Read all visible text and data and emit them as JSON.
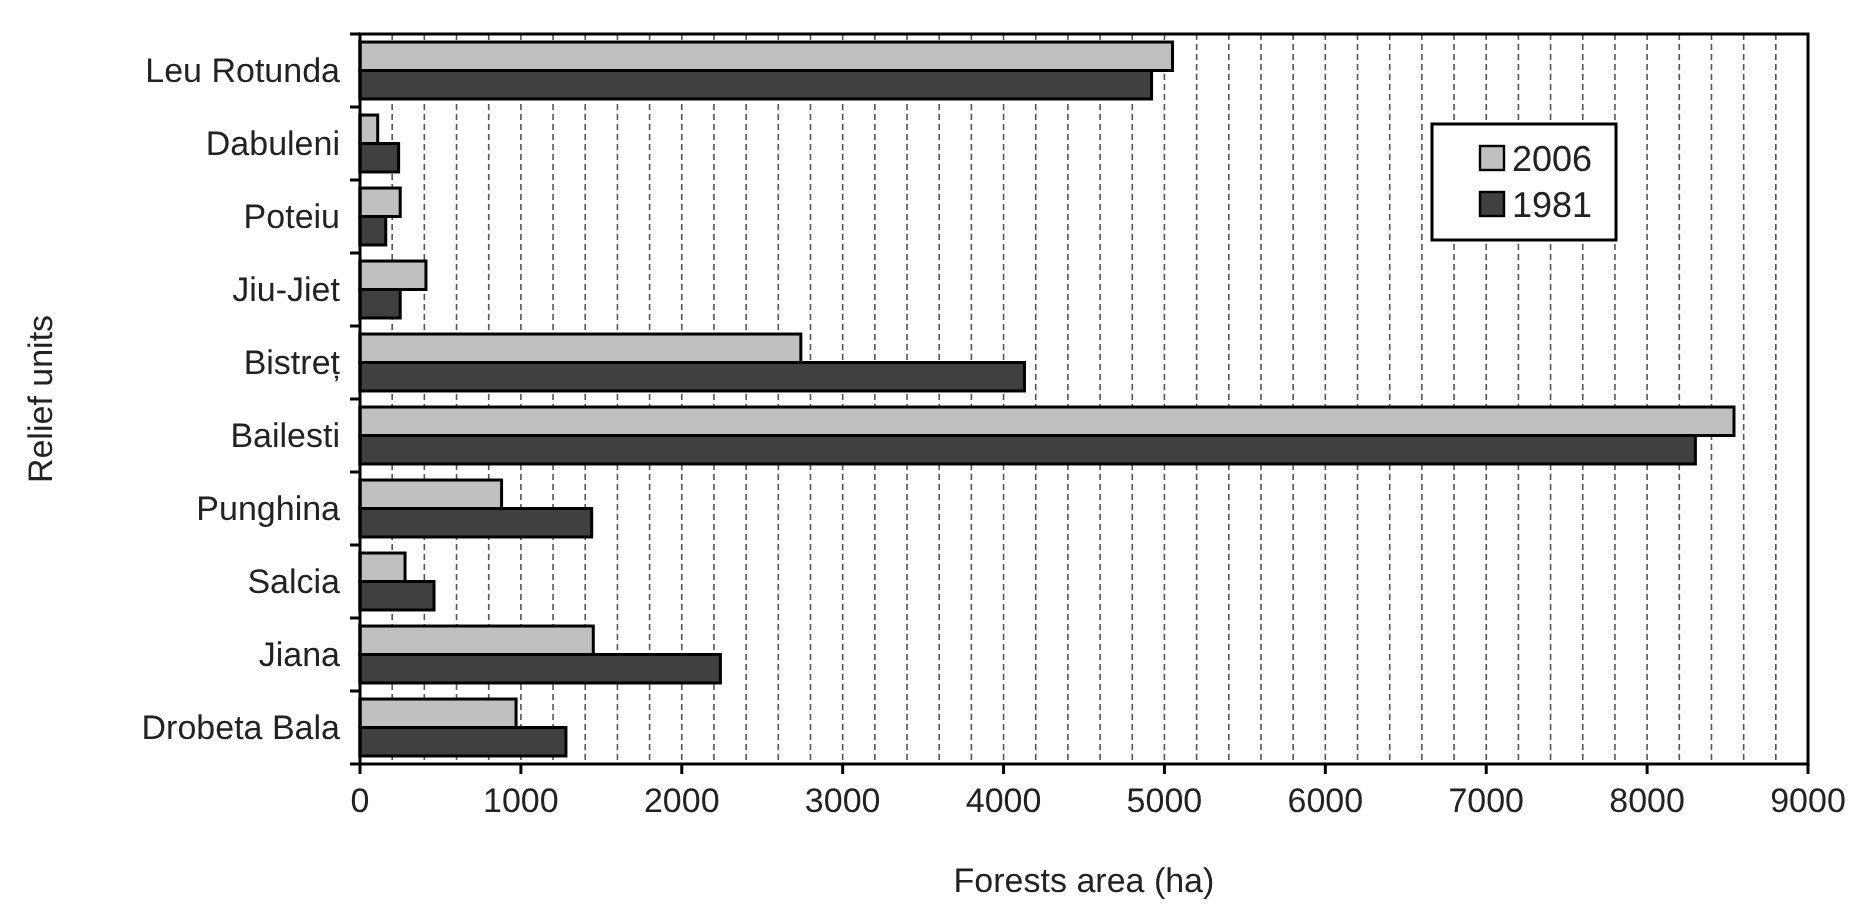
{
  "chart_data": {
    "type": "bar",
    "orientation": "horizontal",
    "xlabel": "Forests area (ha)",
    "ylabel": "Relief units",
    "categories": [
      "Leu Rotunda",
      "Dabuleni",
      "Poteiu",
      "Jiu-Jiet",
      "Bistreț",
      "Bailesti",
      "Punghina",
      "Salcia",
      "Jiana",
      "Drobeta Bala"
    ],
    "series": [
      {
        "name": "2006",
        "color": "#c0c0c0",
        "values": [
          5050,
          110,
          250,
          410,
          2740,
          8540,
          880,
          280,
          1450,
          970
        ]
      },
      {
        "name": "1981",
        "color": "#404040",
        "values": [
          4920,
          240,
          160,
          250,
          4130,
          8300,
          1440,
          460,
          2240,
          1280
        ]
      }
    ],
    "xlim": [
      0,
      9000
    ],
    "xticks": [
      0,
      {
        "value": 200,
        "label": null
      },
      {
        "value": 400,
        "label": null
      },
      {
        "value": 600,
        "label": null
      },
      {
        "value": 800,
        "label": null
      },
      1000,
      {
        "value": 1200,
        "label": null
      },
      {
        "value": 1400,
        "label": null
      },
      {
        "value": 1600,
        "label": null
      },
      {
        "value": 1800,
        "label": null
      },
      2000,
      {
        "value": 2200,
        "label": null
      },
      {
        "value": 2400,
        "label": null
      },
      {
        "value": 2600,
        "label": null
      },
      {
        "value": 2800,
        "label": null
      },
      3000,
      {
        "value": 3200,
        "label": null
      },
      {
        "value": 3400,
        "label": null
      },
      {
        "value": 3600,
        "label": null
      },
      {
        "value": 3800,
        "label": null
      },
      4000,
      {
        "value": 4200,
        "label": null
      },
      {
        "value": 4400,
        "label": null
      },
      {
        "value": 4600,
        "label": null
      },
      {
        "value": 4800,
        "label": null
      },
      5000,
      {
        "value": 5200,
        "label": null
      },
      {
        "value": 5400,
        "label": null
      },
      {
        "value": 5600,
        "label": null
      },
      {
        "value": 5800,
        "label": null
      },
      6000,
      {
        "value": 6200,
        "label": null
      },
      {
        "value": 6400,
        "label": null
      },
      {
        "value": 6600,
        "label": null
      },
      {
        "value": 6800,
        "label": null
      },
      7000,
      {
        "value": 7200,
        "label": null
      },
      {
        "value": 7400,
        "label": null
      },
      {
        "value": 7600,
        "label": null
      },
      {
        "value": 7800,
        "label": null
      },
      8000,
      {
        "value": 8200,
        "label": null
      },
      {
        "value": 8400,
        "label": null
      },
      {
        "value": 8600,
        "label": null
      },
      {
        "value": 8800,
        "label": null
      },
      9000
    ],
    "grid": "x",
    "legend": "top right"
  }
}
